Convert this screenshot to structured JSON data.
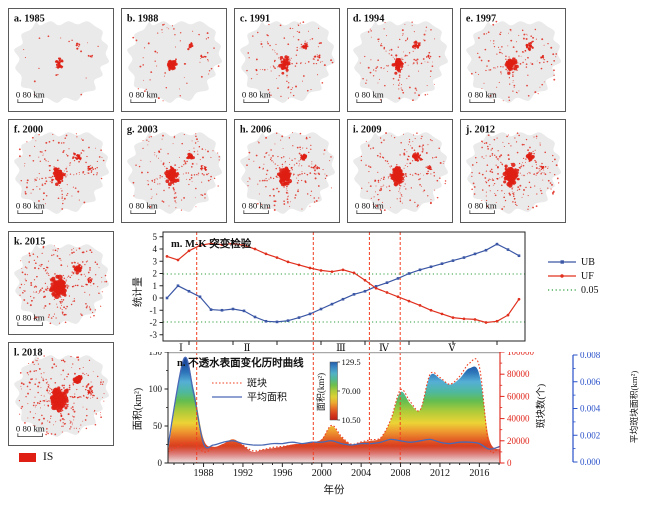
{
  "maps": {
    "scale_label": "0  80 km",
    "legend_label": "IS",
    "legend_color": "#df1f14",
    "land_color": "#eaeaea",
    "dot_color": "#df1f14",
    "panels": [
      {
        "id": "a",
        "label": "a. 1985",
        "year": 1985,
        "intensity": 0.12
      },
      {
        "id": "b",
        "label": "b. 1988",
        "year": 1988,
        "intensity": 0.45
      },
      {
        "id": "c",
        "label": "c. 1991",
        "year": 1991,
        "intensity": 0.55
      },
      {
        "id": "d",
        "label": "d. 1994",
        "year": 1994,
        "intensity": 0.62
      },
      {
        "id": "e",
        "label": "e. 1997",
        "year": 1997,
        "intensity": 0.72
      },
      {
        "id": "f",
        "label": "f. 2000",
        "year": 2000,
        "intensity": 0.82
      },
      {
        "id": "g",
        "label": "g. 2003",
        "year": 2003,
        "intensity": 0.88
      },
      {
        "id": "h",
        "label": "h. 2006",
        "year": 2006,
        "intensity": 0.98
      },
      {
        "id": "i",
        "label": "i. 2009",
        "year": 2009,
        "intensity": 1.08
      },
      {
        "id": "j",
        "label": "j. 2012",
        "year": 2012,
        "intensity": 1.25
      },
      {
        "id": "k",
        "label": "k. 2015",
        "year": 2015,
        "intensity": 1.5
      },
      {
        "id": "l",
        "label": "l. 2018",
        "year": 2018,
        "intensity": 1.7
      }
    ]
  },
  "chart_data": [
    {
      "id": "mk_test",
      "type": "line",
      "title": "m. M-K 突变检验",
      "ylabel": "统计量",
      "ylim": [
        -3,
        5
      ],
      "yticks": [
        5,
        4,
        3,
        2,
        1,
        0,
        -1,
        -2,
        -3
      ],
      "x_start_year": 1986,
      "x_end_year": 2018,
      "xticks_minor_years": [
        1988,
        1992,
        1996,
        2000,
        2004,
        2008,
        2012,
        2016
      ],
      "significance_level": 1.96,
      "significance_label": "0.05",
      "legend": [
        "UB",
        "UF",
        "0.05"
      ],
      "colors": {
        "UB": "#3b57a5",
        "UF": "#e0301e",
        "sig": "#2e9e3e",
        "divider": "#f23d20"
      },
      "period_labels": [
        "Ⅰ",
        "Ⅱ",
        "Ⅲ",
        "Ⅳ",
        "Ⅴ"
      ],
      "divider_years": [
        1988.7,
        1999.3,
        2004.4,
        2007.2
      ],
      "series": [
        {
          "name": "UB",
          "values": [
            0.0,
            1.0,
            0.55,
            0.1,
            -0.95,
            -1.0,
            -0.9,
            -1.05,
            -1.55,
            -1.9,
            -1.95,
            -1.85,
            -1.6,
            -1.3,
            -0.9,
            -0.5,
            -0.1,
            0.3,
            0.55,
            0.95,
            1.25,
            1.6,
            2.0,
            2.3,
            2.55,
            2.8,
            3.05,
            3.3,
            3.6,
            3.9,
            4.4,
            3.95,
            3.45
          ]
        },
        {
          "name": "UF",
          "values": [
            3.4,
            3.1,
            3.85,
            4.3,
            4.45,
            4.35,
            4.45,
            4.3,
            4.0,
            3.6,
            3.3,
            2.95,
            2.7,
            2.45,
            2.25,
            2.15,
            2.3,
            2.05,
            1.45,
            0.8,
            0.45,
            0.1,
            -0.25,
            -0.6,
            -1.0,
            -1.3,
            -1.6,
            -1.7,
            -1.75,
            -2.0,
            -1.9,
            -1.4,
            -0.1
          ]
        }
      ]
    },
    {
      "id": "is_history",
      "type": "area",
      "title": "n. 不透水表面变化历时曲线",
      "xlabel": "年份",
      "x_start_year": 1985,
      "x_end_year": 2018,
      "xticks": [
        1988,
        1992,
        1996,
        2000,
        2004,
        2008,
        2012,
        2016
      ],
      "legend": [
        "斑块",
        "平均面积"
      ],
      "axes": {
        "left": {
          "label": "面积(km²)",
          "ticks": [
            0,
            50,
            100,
            150
          ],
          "max": 150
        },
        "right": {
          "label": "斑块数(个)",
          "ticks": [
            0,
            20000,
            40000,
            60000,
            80000,
            100000
          ],
          "max": 100000,
          "color": "#e02318"
        },
        "far_right": {
          "label": "平均斑块面积(km²)",
          "ticks": [
            0.0,
            0.002,
            0.004,
            0.006,
            0.008
          ],
          "max": 0.008,
          "color": "#2850c8"
        }
      },
      "colorbar": {
        "label": "面积(km²)",
        "tick_labels": [
          "129.5",
          "70.00",
          "10.50"
        ],
        "tick_values": [
          129.5,
          70.0,
          10.5
        ]
      },
      "series": [
        {
          "name": "面积",
          "axis": "left",
          "values": [
            15,
            140,
            100,
            32,
            22,
            26,
            32,
            24,
            15,
            18,
            20,
            22,
            25,
            26,
            28,
            32,
            50,
            35,
            25,
            28,
            30,
            34,
            58,
            96,
            80,
            72,
            118,
            114,
            106,
            114,
            128,
            120,
            32,
            18
          ]
        },
        {
          "name": "斑块",
          "axis": "right",
          "values": [
            10000,
            17000,
            18000,
            10000,
            13000,
            16000,
            20000,
            16000,
            11000,
            12000,
            14000,
            15000,
            16000,
            17000,
            18000,
            21000,
            34000,
            24000,
            17000,
            19000,
            21000,
            23000,
            39000,
            66000,
            55000,
            48000,
            80000,
            77000,
            71000,
            78000,
            90000,
            87000,
            14000,
            16000
          ]
        },
        {
          "name": "平均面积",
          "axis": "far_right",
          "values": [
            0.0012,
            0.0075,
            0.005,
            0.0014,
            0.0013,
            0.0015,
            0.0016,
            0.0014,
            0.0013,
            0.0013,
            0.0014,
            0.0014,
            0.0015,
            0.0014,
            0.0015,
            0.0015,
            0.0016,
            0.0014,
            0.0013,
            0.0014,
            0.0014,
            0.0015,
            0.0017,
            0.0016,
            0.0015,
            0.0016,
            0.0017,
            0.0015,
            0.0014,
            0.0015,
            0.0015,
            0.0014,
            0.001,
            0.0012
          ]
        }
      ]
    }
  ]
}
